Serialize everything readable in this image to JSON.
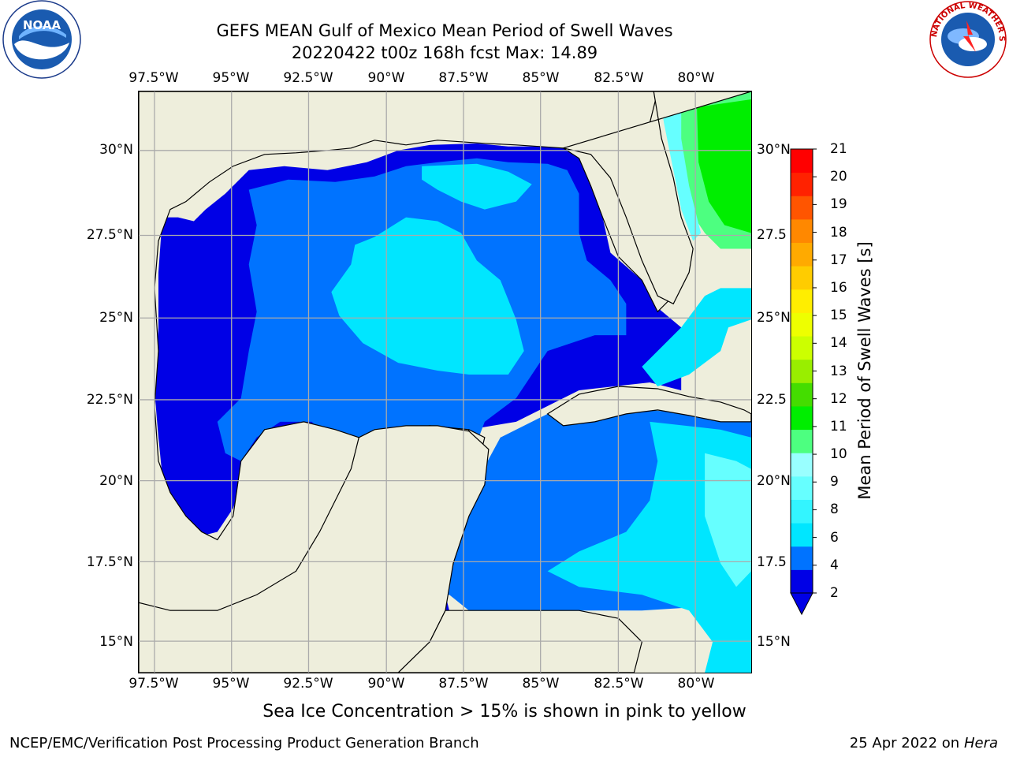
{
  "title": {
    "line1": "GEFS MEAN Gulf of Mexico Mean Period of Swell Waves",
    "line2": "20220422 t00z 168h fcst   Max: 14.89"
  },
  "axes": {
    "lon_labels": [
      "97.5°W",
      "95°W",
      "92.5°W",
      "90°W",
      "87.5°W",
      "85°W",
      "82.5°W",
      "80°W"
    ],
    "lat_labels_left": [
      "30°N",
      "27.5°N",
      "25°N",
      "22.5°N",
      "20°N",
      "17.5°N",
      "15°N"
    ],
    "lat_labels_right": [
      "30°N",
      "27.5",
      "25°N",
      "22.5",
      "20°N",
      "17.5",
      "15°N"
    ]
  },
  "colorbar": {
    "title": "Mean Period of Swell Waves [s]",
    "ticks": [
      "2",
      "4",
      "6",
      "8",
      "9",
      "10",
      "11",
      "12",
      "13",
      "14",
      "15",
      "16",
      "17",
      "18",
      "19",
      "20",
      "21"
    ],
    "colors": [
      "#0000e6",
      "#0073ff",
      "#00e6ff",
      "#33f5ff",
      "#66ffff",
      "#99ffff",
      "#4dff80",
      "#00ee00",
      "#44dd00",
      "#99ee00",
      "#ccff00",
      "#eeff00",
      "#ffee00",
      "#ffcc00",
      "#ffaa00",
      "#ff8800",
      "#ff5500",
      "#ff2200",
      "#ff0000"
    ]
  },
  "colors": {
    "land": "#eeeedc",
    "grid": "#aaaaaa",
    "coast": "#000000"
  },
  "note": "Sea Ice Concentration > 15% is shown in pink to yellow",
  "footer": {
    "left": "NCEP/EMC/Verification Post Processing Product Generation Branch",
    "right_date": "25 Apr 2022 on ",
    "right_machine": "Hera"
  },
  "logos": {
    "noaa": "NOAA",
    "nws": "NATIONAL WEATHER SERVICE"
  }
}
